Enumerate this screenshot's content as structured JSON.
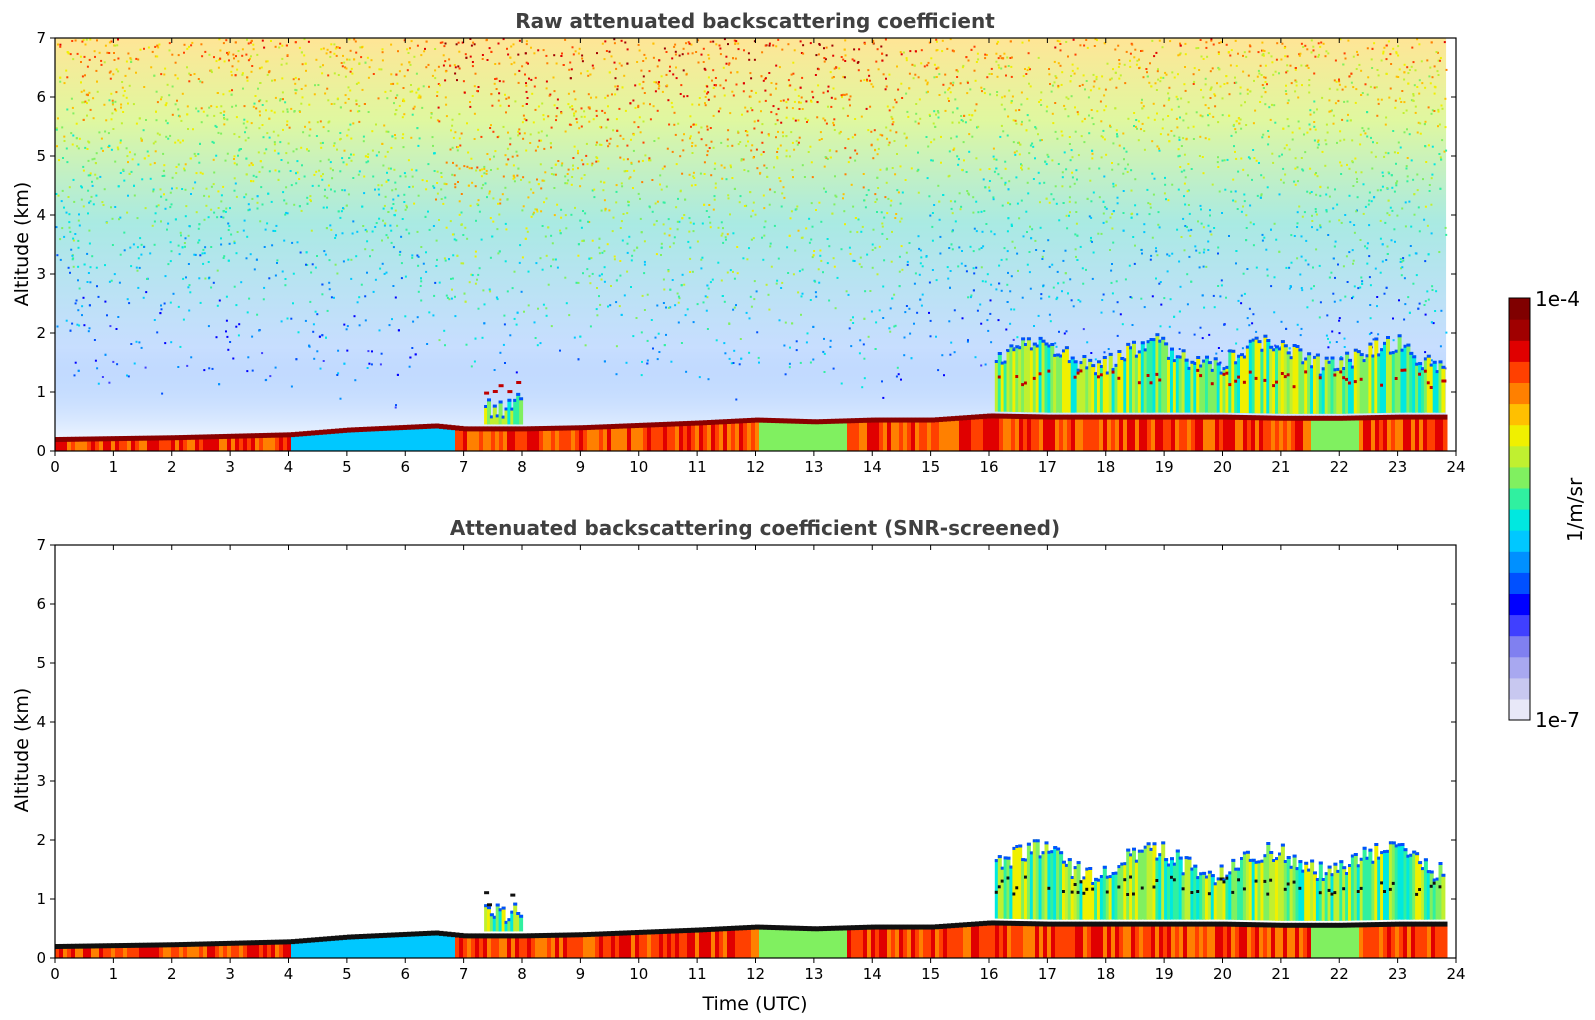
{
  "chart_data": [
    {
      "type": "heatmap",
      "title": "Raw attenuated backscattering coefficient",
      "xlabel": "",
      "ylabel": "Altitude (km)",
      "xlim": [
        0,
        24
      ],
      "ylim": [
        0,
        7
      ],
      "x_ticks": [
        "0",
        "1",
        "2",
        "3",
        "4",
        "5",
        "6",
        "7",
        "8",
        "9",
        "10",
        "11",
        "12",
        "13",
        "14",
        "15",
        "16",
        "17",
        "18",
        "19",
        "20",
        "21",
        "22",
        "23",
        "24"
      ],
      "y_ticks": [
        "0",
        "1",
        "2",
        "3",
        "4",
        "5",
        "6",
        "7"
      ],
      "data_end_hour": 23.83,
      "boundary_layer_top_km": [
        [
          0,
          0.22
        ],
        [
          2,
          0.25
        ],
        [
          4,
          0.3
        ],
        [
          5,
          0.38
        ],
        [
          6.5,
          0.45
        ],
        [
          7,
          0.4
        ],
        [
          8,
          0.4
        ],
        [
          9,
          0.42
        ],
        [
          10,
          0.46
        ],
        [
          11,
          0.5
        ],
        [
          12,
          0.55
        ],
        [
          13,
          0.52
        ],
        [
          14,
          0.55
        ],
        [
          15,
          0.55
        ],
        [
          16,
          0.62
        ],
        [
          17,
          0.6
        ],
        [
          18,
          0.6
        ],
        [
          19,
          0.6
        ],
        [
          20,
          0.6
        ],
        [
          21,
          0.58
        ],
        [
          22,
          0.58
        ],
        [
          23,
          0.6
        ],
        [
          23.83,
          0.6
        ]
      ],
      "cloud_layers": [
        {
          "start_hour": 7.35,
          "end_hour": 7.95,
          "top_km": 1.2,
          "base_km": 0.9
        },
        {
          "start_hour": 16.1,
          "end_hour": 23.8,
          "top_km": 1.9,
          "base_km": 1.1
        }
      ],
      "noise_floor": "random speckle above boundary layer, density increasing with altitude"
    },
    {
      "type": "heatmap",
      "title": "Attenuated backscattering coefficient (SNR-screened)",
      "xlabel": "Time (UTC)",
      "ylabel": "Altitude (km)",
      "xlim": [
        0,
        24
      ],
      "ylim": [
        0,
        7
      ],
      "x_ticks": [
        "0",
        "1",
        "2",
        "3",
        "4",
        "5",
        "6",
        "7",
        "8",
        "9",
        "10",
        "11",
        "12",
        "13",
        "14",
        "15",
        "16",
        "17",
        "18",
        "19",
        "20",
        "21",
        "22",
        "23",
        "24"
      ],
      "y_ticks": [
        "0",
        "1",
        "2",
        "3",
        "4",
        "5",
        "6",
        "7"
      ],
      "data_end_hour": 23.83,
      "boundary_layer_top_km": [
        [
          0,
          0.22
        ],
        [
          2,
          0.25
        ],
        [
          4,
          0.3
        ],
        [
          5,
          0.38
        ],
        [
          6.5,
          0.45
        ],
        [
          7,
          0.4
        ],
        [
          8,
          0.4
        ],
        [
          9,
          0.42
        ],
        [
          10,
          0.46
        ],
        [
          11,
          0.5
        ],
        [
          12,
          0.55
        ],
        [
          13,
          0.52
        ],
        [
          14,
          0.55
        ],
        [
          15,
          0.55
        ],
        [
          16,
          0.62
        ],
        [
          17,
          0.6
        ],
        [
          18,
          0.6
        ],
        [
          19,
          0.6
        ],
        [
          20,
          0.6
        ],
        [
          21,
          0.58
        ],
        [
          22,
          0.58
        ],
        [
          23,
          0.6
        ],
        [
          23.83,
          0.6
        ]
      ],
      "cloud_layers": [
        {
          "start_hour": 7.35,
          "end_hour": 7.95,
          "top_km": 1.2,
          "base_km": 0.9
        },
        {
          "start_hour": 16.1,
          "end_hour": 23.8,
          "top_km": 1.9,
          "base_km": 1.1
        }
      ],
      "noise_floor": "screened (white)"
    }
  ],
  "colorbar": {
    "max_label": "1e-4",
    "min_label": "1e-7",
    "unit_label": "1/m/sr",
    "scale": "log",
    "colors": [
      "#e8e8f8",
      "#c8c8f0",
      "#a8a8f0",
      "#8080f0",
      "#4040ff",
      "#0000ff",
      "#0050ff",
      "#0090ff",
      "#00c8ff",
      "#00e8e0",
      "#30f0a0",
      "#80f060",
      "#c0f030",
      "#f0f000",
      "#ffc000",
      "#ff8000",
      "#ff4000",
      "#e00000",
      "#a00000",
      "#800000"
    ]
  }
}
